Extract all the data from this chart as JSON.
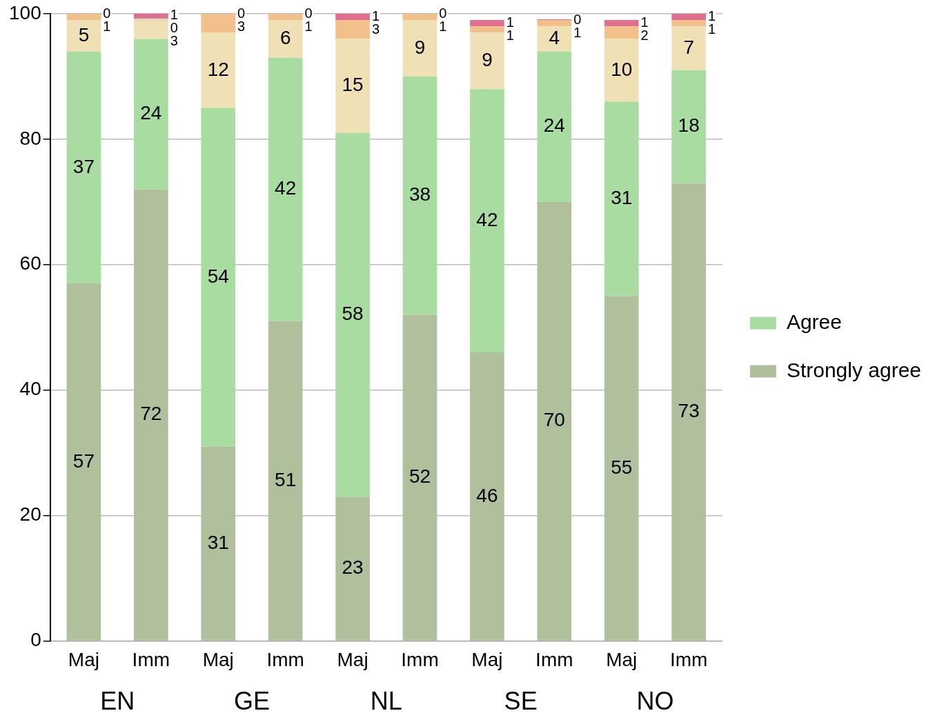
{
  "chart_data": {
    "type": "bar",
    "stacked": true,
    "data_labels": true,
    "grid": "y",
    "legend": "right",
    "categories": [
      "Maj",
      "Imm",
      "Maj",
      "Imm",
      "Maj",
      "Imm",
      "Maj",
      "Imm",
      "Maj",
      "Imm"
    ],
    "annotations": [
      "EN",
      "GE",
      "NL",
      "SE",
      "NO"
    ],
    "ylim": [
      0,
      100
    ],
    "yticks": [
      0,
      20,
      40,
      60,
      80,
      100
    ],
    "series": [
      {
        "name": "Strongly agree",
        "color": "#b0bf9c",
        "values": [
          57,
          72,
          31,
          51,
          23,
          52,
          46,
          70,
          55,
          73
        ]
      },
      {
        "name": "Agree",
        "color": "#a8dca0",
        "values": [
          37,
          24,
          54,
          42,
          58,
          38,
          42,
          24,
          31,
          18
        ]
      },
      {
        "color": "#efe0b5",
        "values": [
          5,
          3,
          12,
          6,
          15,
          9,
          9,
          4,
          10,
          7
        ]
      },
      {
        "color": "#f2c08a",
        "values": [
          1,
          0,
          3,
          1,
          3,
          1,
          1,
          1,
          2,
          1
        ]
      },
      {
        "color": "#e07090",
        "values": [
          0,
          1,
          0,
          0,
          1,
          0,
          1,
          0,
          1,
          1
        ]
      }
    ]
  }
}
